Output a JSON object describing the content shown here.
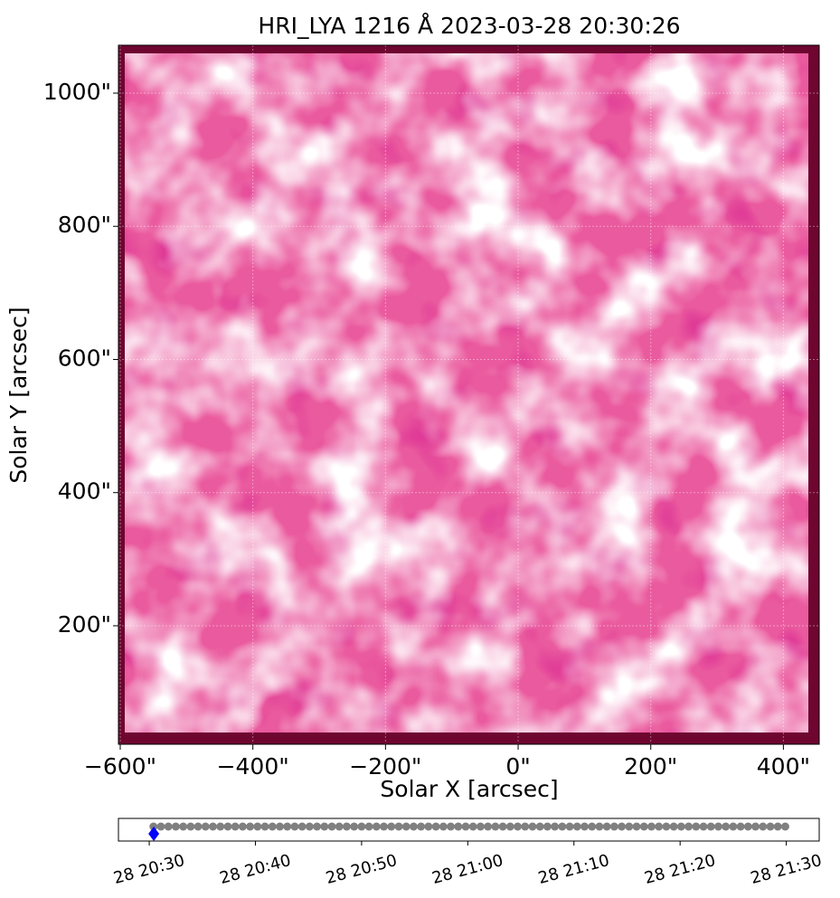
{
  "chart_data": [
    {
      "type": "image",
      "title": "HRI_LYA 1216 Å 2023-03-28 20:30:26",
      "xlabel": "Solar X [arcsec]",
      "ylabel": "Solar Y [arcsec]",
      "xlim": [
        -602.7,
        454
      ],
      "ylim": [
        22,
        1072
      ],
      "xticks": [
        {
          "value": -600,
          "label": "−600\""
        },
        {
          "value": -400,
          "label": "−400\""
        },
        {
          "value": -200,
          "label": "−200\""
        },
        {
          "value": 0,
          "label": "0\""
        },
        {
          "value": 200,
          "label": "200\""
        },
        {
          "value": 400,
          "label": "400\""
        }
      ],
      "yticks": [
        {
          "value": 200,
          "label": "200\""
        },
        {
          "value": 400,
          "label": "400\""
        },
        {
          "value": 600,
          "label": "600\""
        },
        {
          "value": 800,
          "label": "800\""
        },
        {
          "value": 1000,
          "label": "1000\""
        }
      ],
      "grid": true,
      "color": "#ea5a9e"
    },
    {
      "type": "scatter",
      "xlim": [
        1227.1,
        1293.1
      ],
      "xticks": [
        {
          "value": 1230,
          "label": "28 20:30"
        },
        {
          "value": 1240,
          "label": "28 20:40"
        },
        {
          "value": 1250,
          "label": "28 20:50"
        },
        {
          "value": 1260,
          "label": "28 21:00"
        },
        {
          "value": 1270,
          "label": "28 21:10"
        },
        {
          "value": 1280,
          "label": "28 21:20"
        },
        {
          "value": 1290,
          "label": "28 21:30"
        }
      ],
      "x": [
        1230.4,
        1231.1,
        1231.8,
        1232.5,
        1233.2,
        1233.9,
        1234.6,
        1235.3,
        1236.0,
        1236.7,
        1237.4,
        1238.1,
        1238.8,
        1239.5,
        1240.2,
        1240.9,
        1241.6,
        1242.3,
        1243.0,
        1243.7,
        1244.4,
        1245.1,
        1245.8,
        1246.5,
        1247.2,
        1247.9,
        1248.6,
        1249.3,
        1250.0,
        1250.7,
        1251.4,
        1252.1,
        1252.8,
        1253.5,
        1254.2,
        1254.9,
        1255.6,
        1256.3,
        1257.0,
        1257.7,
        1258.4,
        1259.1,
        1259.8,
        1260.5,
        1261.2,
        1261.9,
        1262.6,
        1263.3,
        1264.0,
        1264.7,
        1265.4,
        1266.1,
        1266.8,
        1267.5,
        1268.2,
        1268.9,
        1269.6,
        1270.3,
        1271.0,
        1271.7,
        1272.4,
        1273.1,
        1273.8,
        1274.5,
        1275.2,
        1275.9,
        1276.6,
        1277.3,
        1278.0,
        1278.7,
        1279.4,
        1280.1,
        1280.8,
        1281.5,
        1282.2,
        1282.9,
        1283.6,
        1284.3,
        1285.0,
        1285.7,
        1286.4,
        1287.1,
        1287.8,
        1288.5,
        1289.2,
        1289.9
      ],
      "color": "#808080",
      "current": 1230.43,
      "current_color": "#0000ff"
    }
  ]
}
